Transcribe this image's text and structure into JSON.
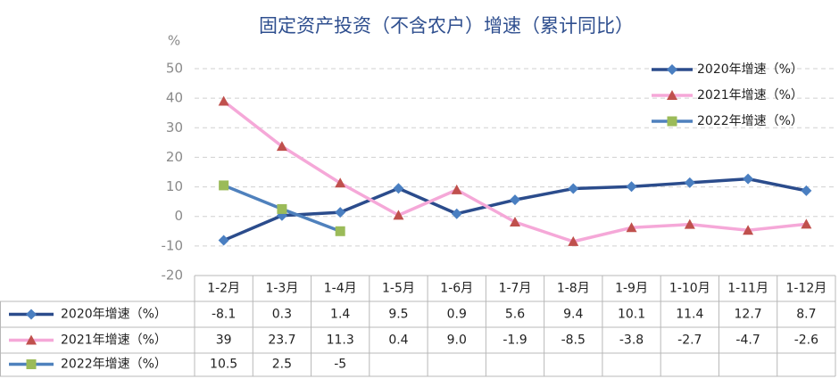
{
  "chart_data": {
    "type": "line",
    "title": "固定资产投资（不含农户）增速（累计同比）",
    "y_label": "%",
    "categories": [
      "1-2月",
      "1-3月",
      "1-4月",
      "1-5月",
      "1-6月",
      "1-7月",
      "1-8月",
      "1-9月",
      "1-10月",
      "1-11月",
      "1-12月"
    ],
    "series": [
      {
        "name": "2020年增速（%）",
        "color": "#2b4c8c",
        "marker": "diamond",
        "marker_color": "#4a7fc1",
        "values": [
          -8.1,
          0.3,
          1.4,
          9.5,
          0.9,
          5.6,
          9.4,
          10.1,
          11.4,
          12.7,
          8.7
        ],
        "value_labels": [
          "-8.1",
          "0.3",
          "1.4",
          "9.5",
          "0.9",
          "5.6",
          "9.4",
          "10.1",
          "11.4",
          "12.7",
          "8.7"
        ]
      },
      {
        "name": "2021年增速（%）",
        "color": "#f5a8d8",
        "marker": "triangle",
        "marker_color": "#c0504d",
        "values": [
          39,
          23.7,
          11.3,
          0.4,
          9.0,
          -1.9,
          -8.5,
          -3.8,
          -2.7,
          -4.7,
          -2.6
        ],
        "value_labels": [
          "39",
          "23.7",
          "11.3",
          "0.4",
          "9.0",
          "-1.9",
          "-8.5",
          "-3.8",
          "-2.7",
          "-4.7",
          "-2.6"
        ]
      },
      {
        "name": "2022年增速（%）",
        "color": "#4f81bd",
        "marker": "square",
        "marker_color": "#9bbb59",
        "values": [
          10.5,
          2.5,
          -5,
          null,
          null,
          null,
          null,
          null,
          null,
          null,
          null
        ],
        "value_labels": [
          "10.5",
          "2.5",
          "-5",
          null,
          null,
          null,
          null,
          null,
          null,
          null,
          null
        ]
      }
    ],
    "ylim": [
      -20,
      50
    ],
    "yticks": [
      -20,
      -10,
      0,
      10,
      20,
      30,
      40,
      50
    ],
    "grid": true,
    "legend": "top-right"
  }
}
